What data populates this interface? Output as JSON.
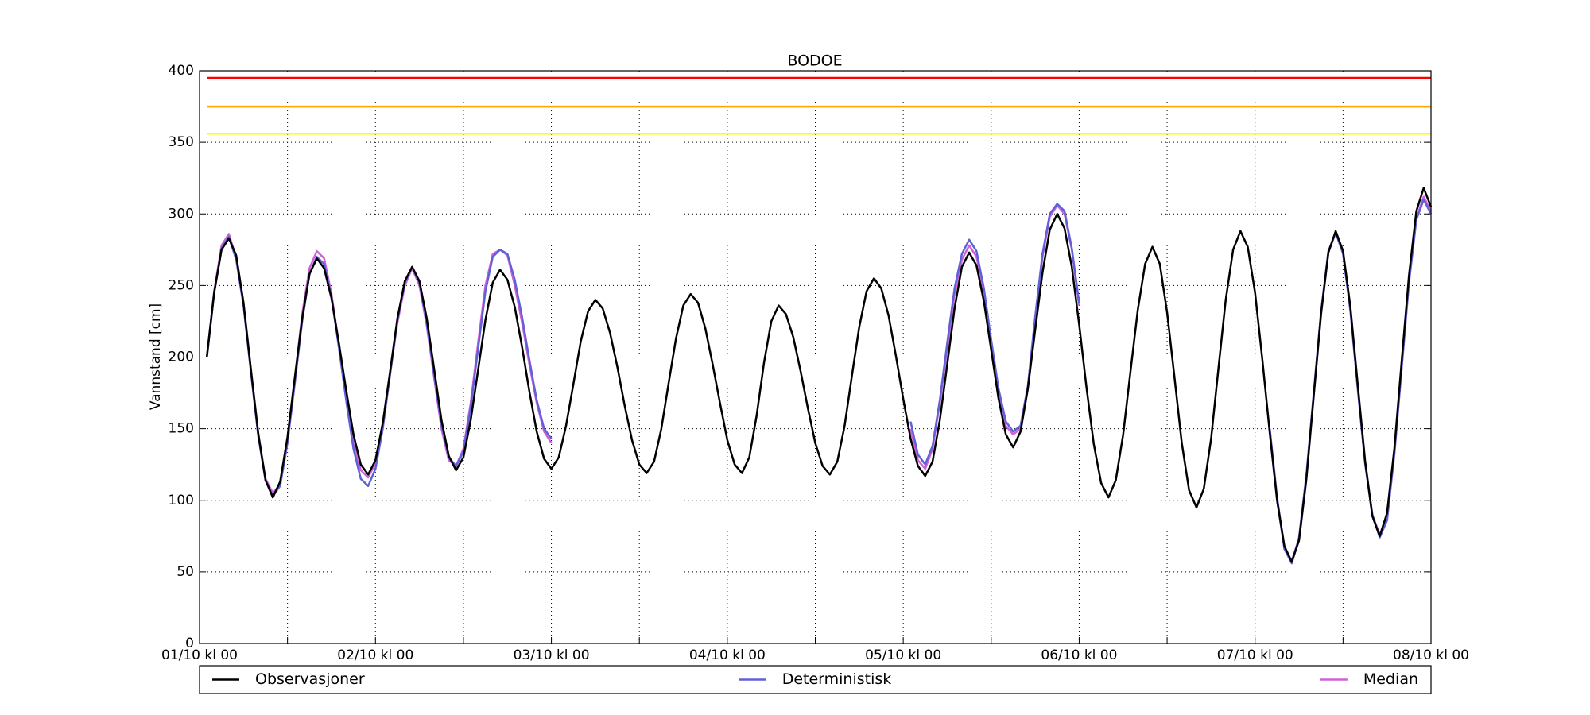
{
  "chart_data": {
    "type": "line",
    "title": "BODOE",
    "y_label": "Vannstand [cm]",
    "xlim": [
      0,
      168
    ],
    "xticks": [
      {
        "value": 0,
        "label": "01/10 kl 00"
      },
      {
        "value": 24,
        "label": "02/10 kl 00"
      },
      {
        "value": 48,
        "label": "03/10 kl 00"
      },
      {
        "value": 72,
        "label": "04/10 kl 00"
      },
      {
        "value": 96,
        "label": "05/10 kl 00"
      },
      {
        "value": 120,
        "label": "06/10 kl 00"
      },
      {
        "value": 144,
        "label": "07/10 kl 00"
      },
      {
        "value": 168,
        "label": "08/10 kl 00"
      }
    ],
    "xticks_minor": [
      12,
      36,
      60,
      84,
      108,
      132,
      156
    ],
    "ylim": [
      0,
      400
    ],
    "yticks": [
      0,
      50,
      100,
      150,
      200,
      250,
      300,
      350,
      400
    ],
    "grid": true,
    "legend": "below",
    "hlines": [
      {
        "value": 395,
        "color": "#ff0000"
      },
      {
        "value": 375,
        "color": "#ffa500"
      },
      {
        "value": 356,
        "color": "#ffff00"
      }
    ],
    "x": [
      1,
      2,
      3,
      4,
      5,
      6,
      7,
      8,
      9,
      10,
      11,
      12,
      13,
      14,
      15,
      16,
      17,
      18,
      19,
      20,
      21,
      22,
      23,
      24,
      25,
      26,
      27,
      28,
      29,
      30,
      31,
      32,
      33,
      34,
      35,
      36,
      37,
      38,
      39,
      40,
      41,
      42,
      43,
      44,
      45,
      46,
      47,
      48,
      49,
      50,
      51,
      52,
      53,
      54,
      55,
      56,
      57,
      58,
      59,
      60,
      61,
      62,
      63,
      64,
      65,
      66,
      67,
      68,
      69,
      70,
      71,
      72,
      73,
      74,
      75,
      76,
      77,
      78,
      79,
      80,
      81,
      82,
      83,
      84,
      85,
      86,
      87,
      88,
      89,
      90,
      91,
      92,
      93,
      94,
      95,
      96,
      97,
      98,
      99,
      100,
      101,
      102,
      103,
      104,
      105,
      106,
      107,
      108,
      109,
      110,
      111,
      112,
      113,
      114,
      115,
      116,
      117,
      118,
      119,
      120,
      121,
      122,
      123,
      124,
      125,
      126,
      127,
      128,
      129,
      130,
      131,
      132,
      133,
      134,
      135,
      136,
      137,
      138,
      139,
      140,
      141,
      142,
      143,
      144,
      145,
      146,
      147,
      148,
      149,
      150,
      151,
      152,
      153,
      154,
      155,
      156,
      157,
      158,
      159,
      160,
      161,
      162,
      163,
      164,
      165,
      166,
      167,
      168
    ],
    "series": [
      {
        "name": "Observasjoner",
        "color": "#000000",
        "values": [
          200,
          245,
          275,
          283,
          271,
          238,
          192,
          147,
          114,
          102,
          113,
          144,
          186,
          227,
          258,
          269,
          262,
          241,
          210,
          177,
          146,
          125,
          118,
          128,
          154,
          190,
          227,
          253,
          263,
          253,
          227,
          192,
          156,
          131,
          121,
          130,
          156,
          191,
          226,
          252,
          261,
          254,
          235,
          207,
          176,
          148,
          129,
          122,
          130,
          152,
          181,
          211,
          232,
          240,
          234,
          217,
          193,
          166,
          142,
          125,
          119,
          127,
          150,
          182,
          213,
          236,
          244,
          238,
          220,
          195,
          168,
          142,
          125,
          119,
          130,
          159,
          196,
          225,
          236,
          230,
          214,
          190,
          164,
          140,
          124,
          118,
          127,
          152,
          187,
          221,
          246,
          255,
          248,
          229,
          201,
          171,
          143,
          124,
          117,
          127,
          156,
          195,
          234,
          263,
          273,
          264,
          239,
          205,
          171,
          146,
          137,
          148,
          178,
          219,
          259,
          289,
          300,
          290,
          263,
          223,
          179,
          139,
          112,
          102,
          114,
          146,
          190,
          233,
          265,
          277,
          265,
          231,
          186,
          140,
          107,
          95,
          108,
          143,
          192,
          240,
          275,
          288,
          277,
          245,
          198,
          147,
          100,
          68,
          57,
          72,
          115,
          173,
          230,
          273,
          288,
          274,
          235,
          181,
          128,
          89,
          75,
          91,
          136,
          197,
          257,
          302,
          318,
          305
        ]
      },
      {
        "name": "Deterministisk",
        "color": "#6060d8",
        "values": [
          200,
          245,
          276,
          284,
          268,
          236,
          190,
          145,
          114,
          103,
          110,
          140,
          182,
          225,
          258,
          270,
          265,
          242,
          207,
          170,
          136,
          115,
          110,
          122,
          150,
          188,
          226,
          252,
          263,
          252,
          224,
          188,
          153,
          130,
          124,
          134,
          165,
          206,
          246,
          270,
          275,
          272,
          254,
          228,
          198,
          170,
          150,
          143,
          null,
          null,
          null,
          null,
          null,
          null,
          null,
          null,
          null,
          null,
          null,
          null,
          null,
          null,
          null,
          null,
          null,
          null,
          null,
          null,
          null,
          null,
          null,
          null,
          null,
          null,
          null,
          null,
          null,
          null,
          null,
          null,
          null,
          null,
          null,
          null,
          null,
          null,
          null,
          null,
          null,
          null,
          null,
          null,
          null,
          null,
          null,
          null,
          155,
          132,
          125,
          138,
          170,
          210,
          248,
          272,
          282,
          274,
          248,
          212,
          178,
          155,
          148,
          152,
          180,
          228,
          272,
          300,
          307,
          302,
          276,
          238,
          null,
          null,
          null,
          null,
          null,
          null,
          null,
          null,
          null,
          null,
          null,
          null,
          null,
          null,
          null,
          null,
          null,
          null,
          null,
          null,
          null,
          null,
          null,
          null,
          null,
          150,
          102,
          66,
          56,
          74,
          118,
          175,
          232,
          274,
          287,
          272,
          232,
          178,
          126,
          90,
          74,
          86,
          132,
          192,
          252,
          296,
          310,
          300
        ]
      },
      {
        "name": "Median",
        "color": "#d060d8",
        "values": [
          200,
          246,
          278,
          286,
          269,
          237,
          191,
          146,
          115,
          105,
          111,
          140,
          184,
          230,
          262,
          274,
          269,
          244,
          209,
          174,
          140,
          121,
          116,
          126,
          152,
          188,
          224,
          250,
          262,
          250,
          222,
          186,
          150,
          128,
          124,
          136,
          168,
          210,
          250,
          272,
          275,
          271,
          250,
          224,
          195,
          168,
          148,
          140,
          null,
          null,
          null,
          null,
          null,
          null,
          null,
          null,
          null,
          null,
          null,
          null,
          null,
          null,
          null,
          null,
          null,
          null,
          null,
          null,
          null,
          null,
          null,
          null,
          null,
          null,
          null,
          null,
          null,
          null,
          null,
          null,
          null,
          null,
          null,
          null,
          null,
          null,
          null,
          null,
          null,
          null,
          null,
          null,
          null,
          null,
          null,
          null,
          150,
          128,
          122,
          136,
          168,
          206,
          244,
          268,
          278,
          270,
          245,
          210,
          176,
          152,
          146,
          150,
          178,
          226,
          270,
          298,
          306,
          300,
          275,
          236,
          null,
          null,
          null,
          null,
          null,
          null,
          null,
          null,
          null,
          null,
          null,
          null,
          null,
          null,
          null,
          null,
          null,
          null,
          null,
          null,
          null,
          null,
          null,
          null,
          null,
          148,
          100,
          66,
          58,
          73,
          117,
          174,
          231,
          273,
          287,
          273,
          233,
          180,
          127,
          90,
          76,
          87,
          133,
          193,
          253,
          297,
          312,
          302
        ]
      }
    ]
  }
}
